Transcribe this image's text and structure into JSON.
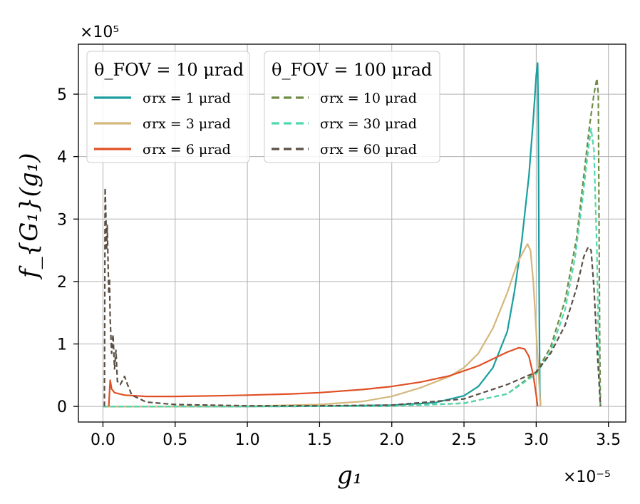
{
  "chart_data": {
    "type": "line",
    "xlabel": "g₁",
    "ylabel": "f_{G₁}(g₁)",
    "x_multiplier": "×10⁻⁵",
    "y_multiplier": "×10⁵",
    "xlim": [
      -0.17,
      3.62
    ],
    "ylim": [
      -0.25,
      5.8
    ],
    "xticks": [
      "0.0",
      "0.5",
      "1.0",
      "1.5",
      "2.0",
      "2.5",
      "3.0",
      "3.5"
    ],
    "xtick_values": [
      0,
      0.5,
      1.0,
      1.5,
      2.0,
      2.5,
      3.0,
      3.5
    ],
    "yticks": [
      "0",
      "1",
      "2",
      "3",
      "4",
      "5"
    ],
    "ytick_values": [
      0,
      1,
      2,
      3,
      4,
      5
    ],
    "grid": true,
    "legend_groups": [
      {
        "title": "θ_FOV = 10 μrad",
        "placement": "top-left"
      },
      {
        "title": "θ_FOV = 100 μrad",
        "placement": "top-center"
      }
    ],
    "series": [
      {
        "name": "σrx = 1 μrad",
        "group": 0,
        "color": "#1a9e9e",
        "dashed": false,
        "points": [
          [
            0,
            0
          ],
          [
            0.5,
            0
          ],
          [
            1.0,
            0
          ],
          [
            1.5,
            0.005
          ],
          [
            2.0,
            0.02
          ],
          [
            2.3,
            0.06
          ],
          [
            2.5,
            0.17
          ],
          [
            2.6,
            0.32
          ],
          [
            2.7,
            0.62
          ],
          [
            2.8,
            1.2
          ],
          [
            2.85,
            1.85
          ],
          [
            2.9,
            2.65
          ],
          [
            2.95,
            3.7
          ],
          [
            2.98,
            4.6
          ],
          [
            3.0,
            5.3
          ],
          [
            3.01,
            5.5
          ],
          [
            3.015,
            4.5
          ],
          [
            3.02,
            2.0
          ],
          [
            3.025,
            0.3
          ],
          [
            3.03,
            0
          ]
        ]
      },
      {
        "name": "σrx = 3 μrad",
        "group": 0,
        "color": "#d4b77c",
        "dashed": false,
        "points": [
          [
            0,
            0
          ],
          [
            0.5,
            0
          ],
          [
            1.0,
            0.005
          ],
          [
            1.5,
            0.03
          ],
          [
            1.8,
            0.08
          ],
          [
            2.0,
            0.16
          ],
          [
            2.2,
            0.3
          ],
          [
            2.4,
            0.48
          ],
          [
            2.5,
            0.62
          ],
          [
            2.6,
            0.85
          ],
          [
            2.7,
            1.25
          ],
          [
            2.8,
            1.82
          ],
          [
            2.87,
            2.3
          ],
          [
            2.92,
            2.52
          ],
          [
            2.94,
            2.6
          ],
          [
            2.96,
            2.5
          ],
          [
            2.98,
            2.0
          ],
          [
            3.0,
            1.2
          ],
          [
            3.02,
            0.4
          ],
          [
            3.03,
            0
          ]
        ]
      },
      {
        "name": "σrx = 6 μrad",
        "group": 0,
        "color": "#e05025",
        "dashed": false,
        "points": [
          [
            0.04,
            0
          ],
          [
            0.05,
            0.42
          ],
          [
            0.06,
            0.28
          ],
          [
            0.08,
            0.22
          ],
          [
            0.15,
            0.18
          ],
          [
            0.3,
            0.16
          ],
          [
            0.5,
            0.16
          ],
          [
            0.8,
            0.17
          ],
          [
            1.0,
            0.18
          ],
          [
            1.3,
            0.2
          ],
          [
            1.5,
            0.22
          ],
          [
            1.8,
            0.27
          ],
          [
            2.0,
            0.32
          ],
          [
            2.2,
            0.39
          ],
          [
            2.4,
            0.49
          ],
          [
            2.6,
            0.65
          ],
          [
            2.7,
            0.76
          ],
          [
            2.8,
            0.87
          ],
          [
            2.88,
            0.94
          ],
          [
            2.92,
            0.92
          ],
          [
            2.95,
            0.8
          ],
          [
            2.98,
            0.5
          ],
          [
            3.0,
            0.18
          ],
          [
            3.01,
            0
          ]
        ]
      },
      {
        "name": "σrx = 10 μrad",
        "group": 1,
        "color": "#6e8b45",
        "dashed": true,
        "points": [
          [
            0,
            0
          ],
          [
            1.0,
            0
          ],
          [
            2.0,
            0.005
          ],
          [
            2.5,
            0.05
          ],
          [
            2.8,
            0.2
          ],
          [
            3.0,
            0.55
          ],
          [
            3.1,
            0.95
          ],
          [
            3.2,
            1.7
          ],
          [
            3.28,
            2.7
          ],
          [
            3.33,
            3.7
          ],
          [
            3.37,
            4.5
          ],
          [
            3.4,
            5.0
          ],
          [
            3.42,
            5.25
          ],
          [
            3.43,
            5.0
          ],
          [
            3.435,
            3.0
          ],
          [
            3.44,
            1.0
          ],
          [
            3.445,
            0
          ]
        ]
      },
      {
        "name": "σrx = 30 μrad",
        "group": 1,
        "color": "#4fd8ae",
        "dashed": true,
        "points": [
          [
            0,
            0
          ],
          [
            1.0,
            0
          ],
          [
            2.0,
            0.005
          ],
          [
            2.5,
            0.05
          ],
          [
            2.8,
            0.2
          ],
          [
            3.0,
            0.52
          ],
          [
            3.1,
            0.88
          ],
          [
            3.2,
            1.55
          ],
          [
            3.27,
            2.4
          ],
          [
            3.32,
            3.3
          ],
          [
            3.36,
            4.1
          ],
          [
            3.38,
            4.45
          ],
          [
            3.4,
            4.1
          ],
          [
            3.42,
            2.5
          ],
          [
            3.43,
            1.2
          ],
          [
            3.44,
            0.2
          ],
          [
            3.445,
            0
          ]
        ]
      },
      {
        "name": "σrx = 60 μrad",
        "group": 1,
        "color": "#5a4f44",
        "dashed": true,
        "points": [
          [
            0.01,
            0
          ],
          [
            0.015,
            3.5
          ],
          [
            0.02,
            3.1
          ],
          [
            0.025,
            2.5
          ],
          [
            0.03,
            2.9
          ],
          [
            0.04,
            1.8
          ],
          [
            0.045,
            2.05
          ],
          [
            0.05,
            1.4
          ],
          [
            0.06,
            0.85
          ],
          [
            0.07,
            1.15
          ],
          [
            0.08,
            0.6
          ],
          [
            0.09,
            0.9
          ],
          [
            0.1,
            0.4
          ],
          [
            0.12,
            0.35
          ],
          [
            0.15,
            0.48
          ],
          [
            0.17,
            0.35
          ],
          [
            0.2,
            0.18
          ],
          [
            0.3,
            0.07
          ],
          [
            0.5,
            0.03
          ],
          [
            1.0,
            0.01
          ],
          [
            1.5,
            0.01
          ],
          [
            2.0,
            0.02
          ],
          [
            2.5,
            0.12
          ],
          [
            2.8,
            0.35
          ],
          [
            3.0,
            0.55
          ],
          [
            3.1,
            0.85
          ],
          [
            3.2,
            1.3
          ],
          [
            3.28,
            1.9
          ],
          [
            3.33,
            2.4
          ],
          [
            3.36,
            2.55
          ],
          [
            3.38,
            2.5
          ],
          [
            3.4,
            1.9
          ],
          [
            3.42,
            1.0
          ],
          [
            3.44,
            0.2
          ],
          [
            3.445,
            0
          ]
        ]
      }
    ]
  }
}
